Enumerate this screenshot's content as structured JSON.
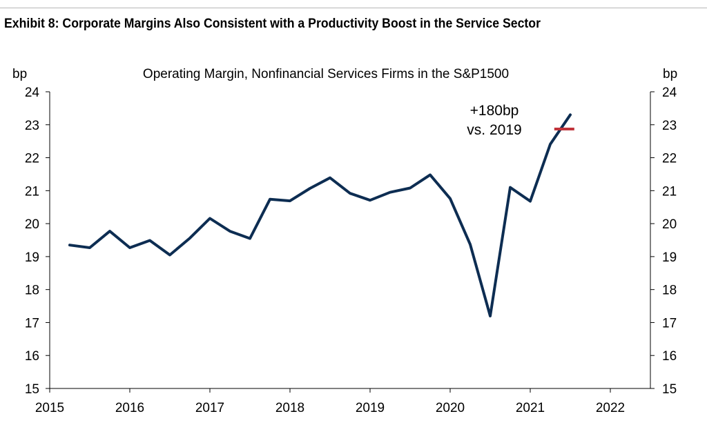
{
  "exhibit_title": "Exhibit 8: Corporate Margins Also Consistent with a Productivity Boost in the Service Sector",
  "chart_data": {
    "type": "line",
    "title": "Operating Margin, Nonfinancial Services Firms in the S&P1500",
    "ylabel_left": "bp",
    "ylabel_right": "bp",
    "xlim": [
      2015,
      2022.5
    ],
    "ylim": [
      15,
      24
    ],
    "x_ticks": [
      "2015",
      "2016",
      "2017",
      "2018",
      "2019",
      "2020",
      "2021",
      "2022"
    ],
    "y_ticks": [
      "15",
      "16",
      "17",
      "18",
      "19",
      "20",
      "21",
      "22",
      "23",
      "24"
    ],
    "line_color": "#0d2d52",
    "reference_color": "#c0333a",
    "series": [
      {
        "x": [
          2015.25,
          2015.5,
          2015.75,
          2016.0,
          2016.25,
          2016.5,
          2016.75,
          2017.0,
          2017.25,
          2017.5,
          2017.75,
          2018.0,
          2018.25,
          2018.5,
          2018.75,
          2019.0,
          2019.25,
          2019.5,
          2019.75,
          2020.0,
          2020.25,
          2020.5,
          2020.75,
          2021.0,
          2021.25,
          2021.5
        ],
        "values": [
          19.35,
          19.27,
          19.77,
          19.27,
          19.49,
          19.05,
          19.56,
          20.16,
          19.77,
          19.55,
          20.74,
          20.69,
          21.07,
          21.39,
          20.92,
          20.71,
          20.95,
          21.08,
          21.48,
          20.76,
          19.37,
          17.2,
          21.1,
          20.68,
          22.41,
          23.3
        ]
      }
    ],
    "reference_line": {
      "x_start": 2021.3,
      "x_end": 2021.55,
      "value": 22.87
    },
    "annotation": {
      "lines": [
        "+180bp",
        "vs. 2019"
      ]
    }
  }
}
